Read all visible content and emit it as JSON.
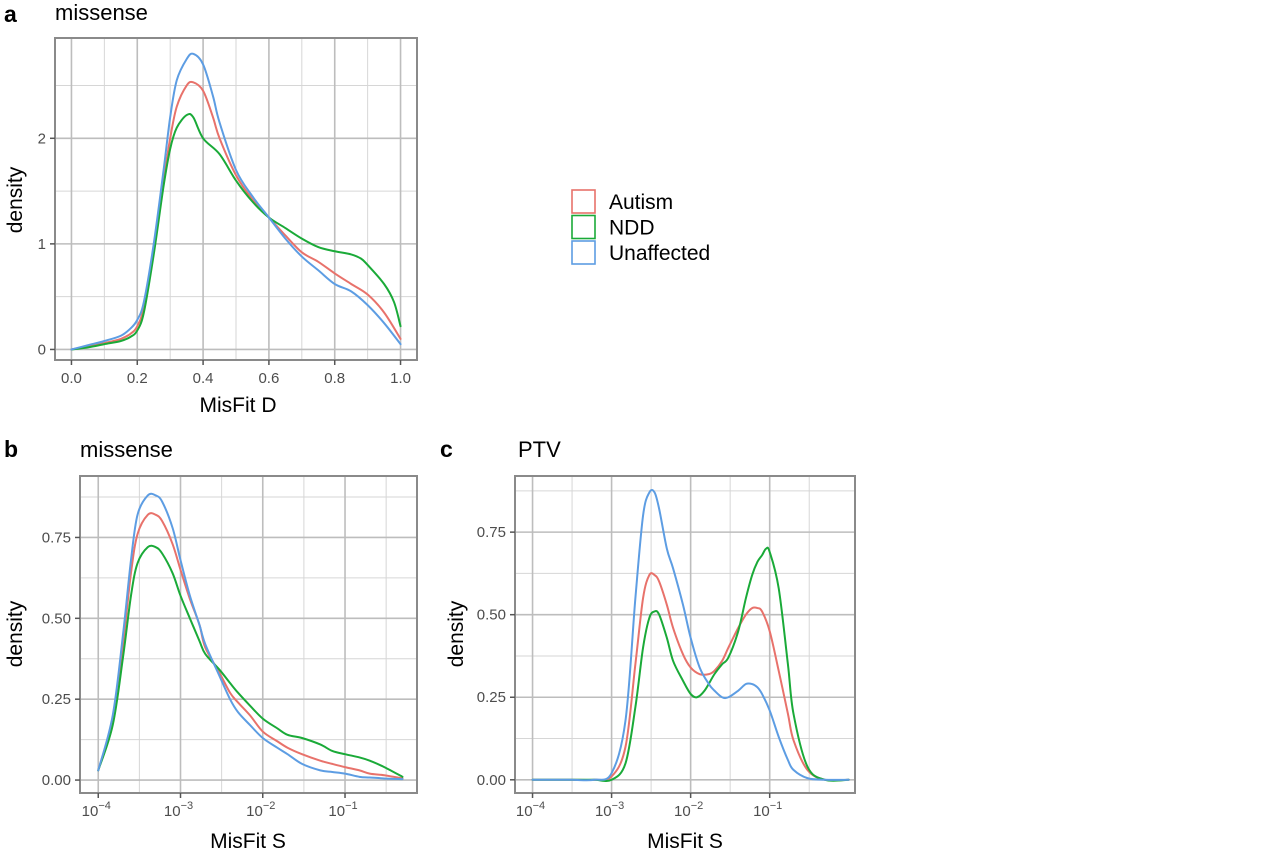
{
  "colors": {
    "Autism": "#e8726b",
    "NDD": "#1aaa38",
    "Unaffected": "#5d9de3"
  },
  "legend": {
    "items": [
      "Autism",
      "NDD",
      "Unaffected"
    ]
  },
  "chart_data": [
    {
      "id": "a",
      "letter": "a",
      "title": "missense",
      "type": "line",
      "xscale": "linear",
      "xlabel": "MisFit D",
      "ylabel": "density",
      "xlim": [
        -0.05,
        1.05
      ],
      "ylim": [
        -0.1,
        2.95
      ],
      "xticks": [
        0.0,
        0.2,
        0.4,
        0.6,
        0.8,
        1.0
      ],
      "xtick_labels": [
        "0.0",
        "0.2",
        "0.4",
        "0.6",
        "0.8",
        "1.0"
      ],
      "yticks": [
        0,
        1,
        2
      ],
      "ytick_labels": [
        "0",
        "1",
        "2"
      ],
      "grid": true,
      "series": [
        {
          "name": "Autism",
          "x": [
            0.0,
            0.05,
            0.1,
            0.15,
            0.18,
            0.2,
            0.22,
            0.25,
            0.28,
            0.3,
            0.32,
            0.35,
            0.37,
            0.4,
            0.43,
            0.45,
            0.5,
            0.55,
            0.6,
            0.65,
            0.7,
            0.75,
            0.8,
            0.85,
            0.9,
            0.95,
            1.0
          ],
          "y": [
            0.0,
            0.03,
            0.06,
            0.1,
            0.15,
            0.22,
            0.4,
            0.95,
            1.6,
            2.0,
            2.3,
            2.5,
            2.53,
            2.45,
            2.2,
            2.0,
            1.65,
            1.42,
            1.25,
            1.08,
            0.92,
            0.83,
            0.72,
            0.62,
            0.52,
            0.35,
            0.1
          ]
        },
        {
          "name": "NDD",
          "x": [
            0.0,
            0.05,
            0.1,
            0.15,
            0.18,
            0.2,
            0.22,
            0.25,
            0.28,
            0.3,
            0.32,
            0.35,
            0.37,
            0.4,
            0.45,
            0.5,
            0.55,
            0.6,
            0.65,
            0.7,
            0.75,
            0.8,
            0.85,
            0.88,
            0.9,
            0.95,
            0.98,
            1.0
          ],
          "y": [
            0.0,
            0.02,
            0.05,
            0.08,
            0.12,
            0.18,
            0.35,
            0.9,
            1.55,
            1.9,
            2.1,
            2.22,
            2.2,
            2.0,
            1.85,
            1.6,
            1.4,
            1.25,
            1.15,
            1.05,
            0.97,
            0.93,
            0.9,
            0.86,
            0.8,
            0.62,
            0.45,
            0.22
          ]
        },
        {
          "name": "Unaffected",
          "x": [
            0.0,
            0.05,
            0.1,
            0.15,
            0.18,
            0.2,
            0.22,
            0.25,
            0.28,
            0.3,
            0.32,
            0.35,
            0.37,
            0.4,
            0.43,
            0.45,
            0.5,
            0.55,
            0.6,
            0.65,
            0.7,
            0.75,
            0.8,
            0.85,
            0.9,
            0.95,
            1.0
          ],
          "y": [
            0.0,
            0.04,
            0.08,
            0.13,
            0.2,
            0.28,
            0.45,
            1.0,
            1.7,
            2.2,
            2.55,
            2.75,
            2.8,
            2.7,
            2.4,
            2.15,
            1.7,
            1.45,
            1.25,
            1.05,
            0.88,
            0.75,
            0.62,
            0.55,
            0.42,
            0.25,
            0.05
          ]
        }
      ]
    },
    {
      "id": "b",
      "letter": "b",
      "title": "missense",
      "type": "line",
      "xscale": "log10",
      "xlabel": "MisFit S",
      "ylabel": "density",
      "xlim": [
        6e-05,
        0.75
      ],
      "ylim": [
        -0.04,
        0.94
      ],
      "xticks": [
        0.0001,
        0.001,
        0.01,
        0.1
      ],
      "xtick_labels": [
        "10",
        "10",
        "10",
        "10"
      ],
      "xtick_exponents": [
        "−4",
        "−3",
        "−2",
        "−1"
      ],
      "yticks": [
        0.0,
        0.25,
        0.5,
        0.75
      ],
      "ytick_labels": [
        "0.00",
        "0.25",
        "0.50",
        "0.75"
      ],
      "grid": true,
      "series": [
        {
          "name": "Autism",
          "x": [
            0.0001,
            0.00015,
            0.0002,
            0.00025,
            0.0003,
            0.0004,
            0.0005,
            0.0006,
            0.0008,
            0.001,
            0.0013,
            0.0017,
            0.002,
            0.003,
            0.004,
            0.005,
            0.007,
            0.01,
            0.015,
            0.02,
            0.03,
            0.05,
            0.07,
            0.1,
            0.15,
            0.2,
            0.3,
            0.5
          ],
          "y": [
            0.03,
            0.19,
            0.42,
            0.64,
            0.76,
            0.82,
            0.82,
            0.8,
            0.73,
            0.65,
            0.56,
            0.48,
            0.41,
            0.33,
            0.27,
            0.24,
            0.2,
            0.15,
            0.12,
            0.1,
            0.08,
            0.06,
            0.05,
            0.04,
            0.03,
            0.02,
            0.015,
            0.005
          ]
        },
        {
          "name": "NDD",
          "x": [
            0.0001,
            0.00015,
            0.0002,
            0.00025,
            0.0003,
            0.0004,
            0.0005,
            0.0006,
            0.0008,
            0.001,
            0.0013,
            0.0017,
            0.002,
            0.003,
            0.004,
            0.005,
            0.007,
            0.01,
            0.015,
            0.02,
            0.03,
            0.05,
            0.07,
            0.1,
            0.15,
            0.2,
            0.3,
            0.5
          ],
          "y": [
            0.03,
            0.17,
            0.38,
            0.57,
            0.67,
            0.72,
            0.72,
            0.7,
            0.64,
            0.57,
            0.5,
            0.43,
            0.39,
            0.34,
            0.3,
            0.27,
            0.23,
            0.19,
            0.16,
            0.14,
            0.13,
            0.11,
            0.09,
            0.08,
            0.07,
            0.06,
            0.04,
            0.01
          ]
        },
        {
          "name": "Unaffected",
          "x": [
            0.0001,
            0.00015,
            0.0002,
            0.00025,
            0.0003,
            0.0004,
            0.0005,
            0.0006,
            0.0008,
            0.001,
            0.0013,
            0.0017,
            0.002,
            0.003,
            0.004,
            0.005,
            0.007,
            0.01,
            0.015,
            0.02,
            0.03,
            0.05,
            0.07,
            0.1,
            0.15,
            0.2,
            0.3,
            0.5
          ],
          "y": [
            0.03,
            0.2,
            0.45,
            0.68,
            0.82,
            0.88,
            0.88,
            0.86,
            0.78,
            0.68,
            0.57,
            0.48,
            0.42,
            0.32,
            0.25,
            0.21,
            0.17,
            0.13,
            0.1,
            0.08,
            0.05,
            0.03,
            0.025,
            0.02,
            0.01,
            0.008,
            0.005,
            0.003
          ]
        }
      ]
    },
    {
      "id": "c",
      "letter": "c",
      "title": "PTV",
      "type": "line",
      "xscale": "log10",
      "xlabel": "MisFit S",
      "ylabel": "density",
      "xlim": [
        6e-05,
        1.2
      ],
      "ylim": [
        -0.04,
        0.92
      ],
      "xticks": [
        0.0001,
        0.001,
        0.01,
        0.1
      ],
      "xtick_labels": [
        "10",
        "10",
        "10",
        "10"
      ],
      "xtick_exponents": [
        "−4",
        "−3",
        "−2",
        "−1"
      ],
      "yticks": [
        0.0,
        0.25,
        0.5,
        0.75
      ],
      "ytick_labels": [
        "0.00",
        "0.25",
        "0.50",
        "0.75"
      ],
      "grid": true,
      "series": [
        {
          "name": "Autism",
          "x": [
            0.0001,
            0.0003,
            0.0006,
            0.001,
            0.0015,
            0.002,
            0.0025,
            0.003,
            0.0035,
            0.004,
            0.005,
            0.006,
            0.008,
            0.01,
            0.013,
            0.017,
            0.02,
            0.025,
            0.03,
            0.04,
            0.05,
            0.06,
            0.07,
            0.08,
            0.1,
            0.13,
            0.17,
            0.2,
            0.3,
            0.5,
            1.0
          ],
          "y": [
            0.0,
            0.0,
            0.0,
            0.01,
            0.1,
            0.35,
            0.55,
            0.62,
            0.62,
            0.6,
            0.53,
            0.46,
            0.38,
            0.34,
            0.32,
            0.32,
            0.33,
            0.36,
            0.4,
            0.46,
            0.5,
            0.52,
            0.52,
            0.51,
            0.45,
            0.33,
            0.2,
            0.12,
            0.03,
            0.0,
            0.0
          ]
        },
        {
          "name": "NDD",
          "x": [
            0.0001,
            0.0003,
            0.0006,
            0.001,
            0.0015,
            0.002,
            0.0025,
            0.003,
            0.0035,
            0.004,
            0.005,
            0.006,
            0.008,
            0.01,
            0.012,
            0.015,
            0.02,
            0.025,
            0.03,
            0.04,
            0.05,
            0.06,
            0.07,
            0.08,
            0.09,
            0.1,
            0.13,
            0.17,
            0.2,
            0.3,
            0.5,
            1.0
          ],
          "y": [
            0.0,
            0.0,
            0.0,
            0.0,
            0.05,
            0.22,
            0.4,
            0.49,
            0.51,
            0.5,
            0.43,
            0.36,
            0.3,
            0.26,
            0.25,
            0.27,
            0.32,
            0.35,
            0.37,
            0.45,
            0.55,
            0.62,
            0.66,
            0.68,
            0.7,
            0.69,
            0.58,
            0.35,
            0.2,
            0.04,
            0.0,
            0.0
          ]
        },
        {
          "name": "Unaffected",
          "x": [
            0.0001,
            0.0003,
            0.0006,
            0.001,
            0.0015,
            0.002,
            0.0025,
            0.003,
            0.0035,
            0.004,
            0.005,
            0.006,
            0.008,
            0.01,
            0.013,
            0.017,
            0.02,
            0.025,
            0.03,
            0.04,
            0.05,
            0.06,
            0.07,
            0.08,
            0.1,
            0.13,
            0.17,
            0.2,
            0.3,
            0.5,
            1.0
          ],
          "y": [
            0.0,
            0.0,
            0.0,
            0.02,
            0.18,
            0.55,
            0.8,
            0.87,
            0.87,
            0.82,
            0.7,
            0.64,
            0.53,
            0.43,
            0.34,
            0.29,
            0.27,
            0.25,
            0.25,
            0.27,
            0.29,
            0.29,
            0.28,
            0.26,
            0.21,
            0.13,
            0.06,
            0.03,
            0.005,
            0.0,
            0.0
          ]
        }
      ]
    }
  ]
}
